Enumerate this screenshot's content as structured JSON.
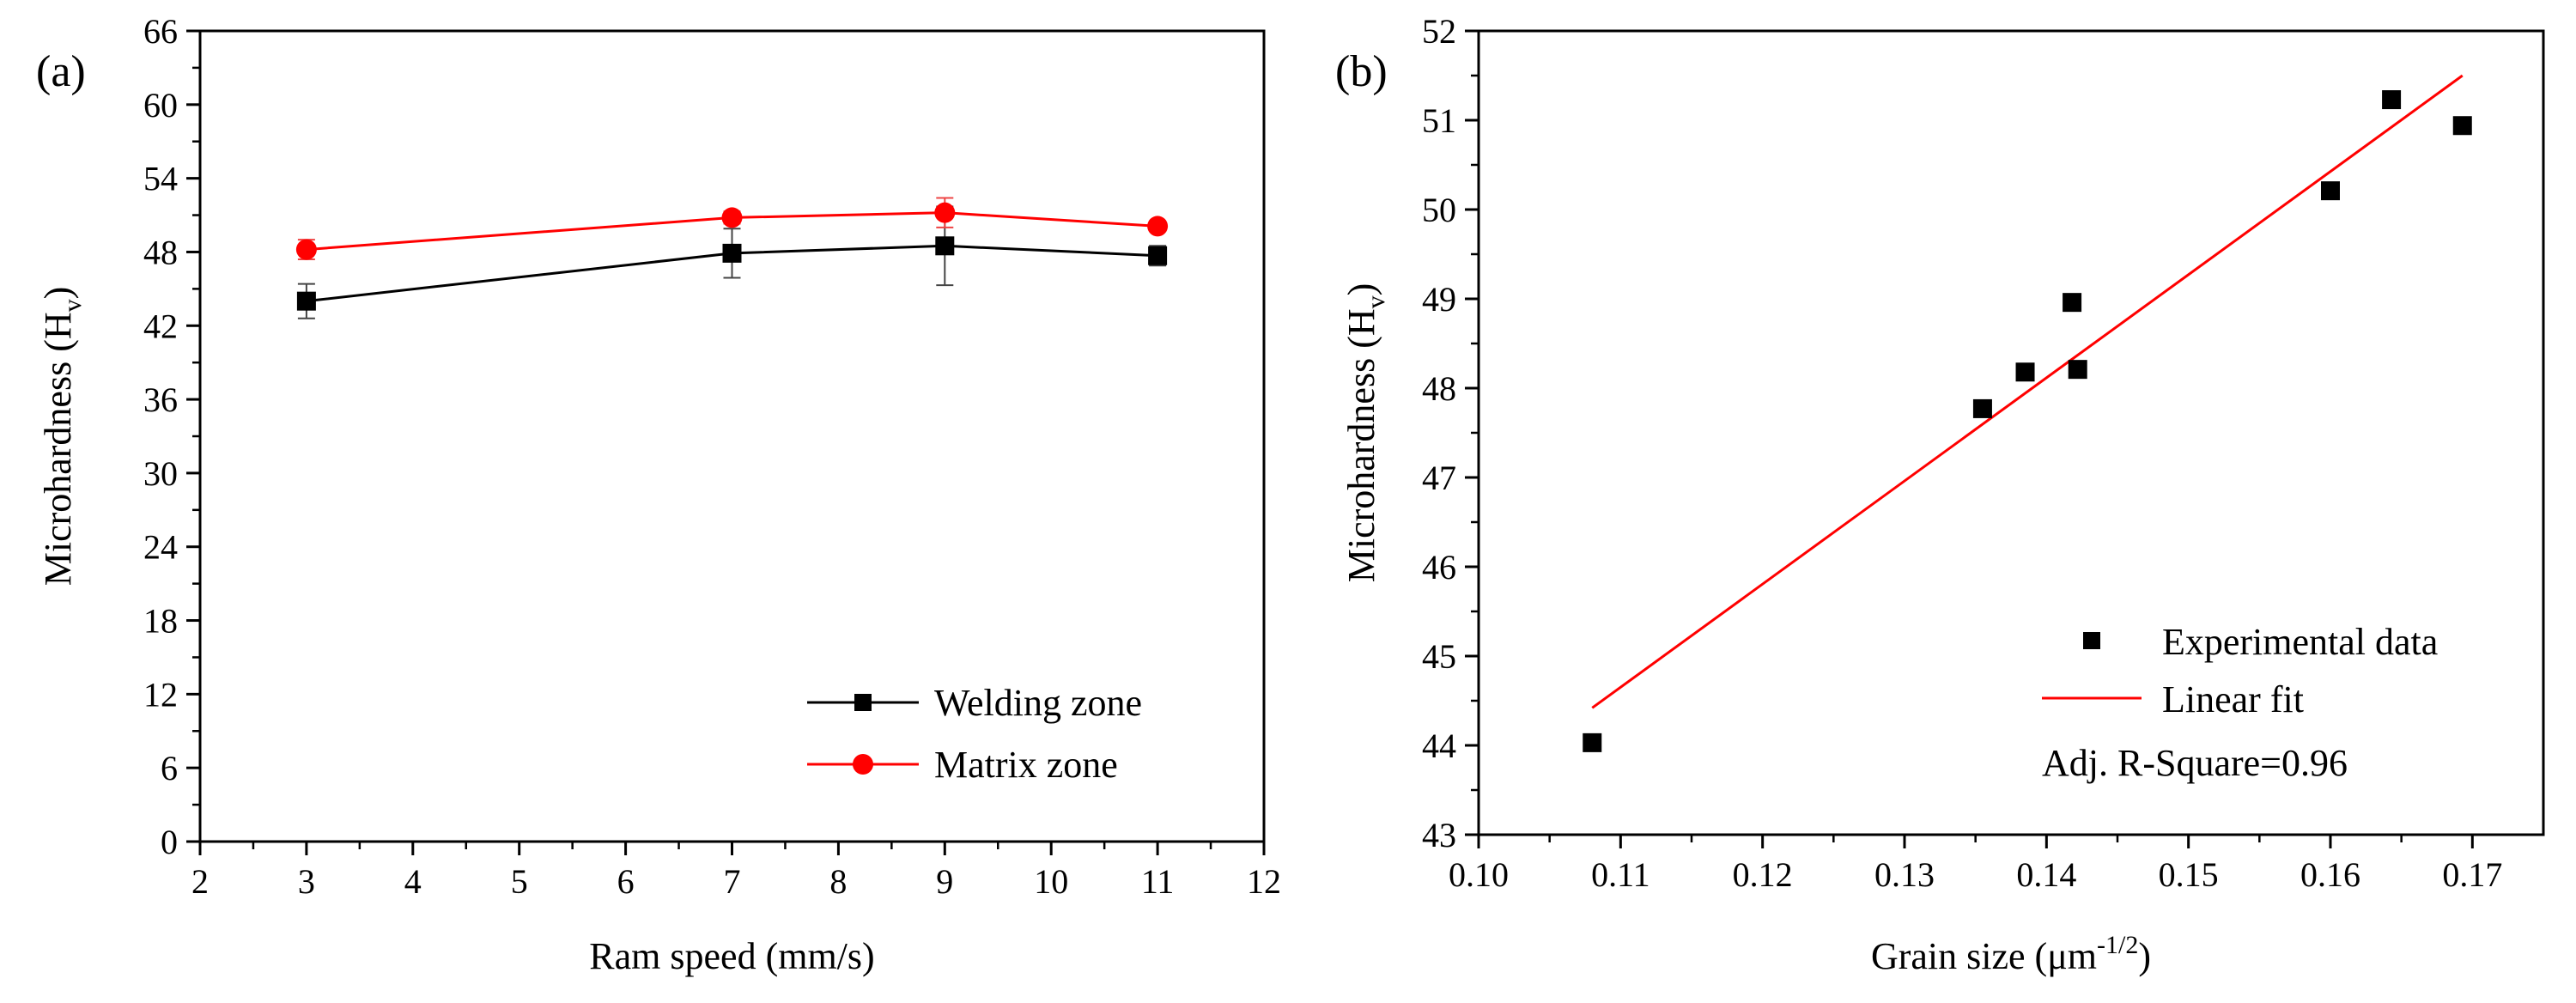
{
  "chart_data": [
    {
      "panel_label": "(a)",
      "type": "line",
      "xlabel": "Ram speed (mm/s)",
      "ylabel": {
        "main": "Microhardness (H",
        "sub": "v",
        "close": ")"
      },
      "xlim": [
        2,
        12
      ],
      "ylim": [
        0,
        66
      ],
      "xticks": [
        2,
        3,
        4,
        5,
        6,
        7,
        8,
        9,
        10,
        11,
        12
      ],
      "yticks": [
        0,
        6,
        12,
        18,
        24,
        30,
        36,
        42,
        48,
        54,
        60,
        66
      ],
      "grid": false,
      "legend_position": "bottom-right",
      "x": [
        3,
        7,
        9,
        11
      ],
      "series": [
        {
          "name": "Welding zone",
          "color": "#000000",
          "marker": "square",
          "values": [
            44.0,
            47.9,
            48.5,
            47.7
          ],
          "error": [
            1.4,
            2.0,
            3.2,
            0.8
          ]
        },
        {
          "name": "Matrix zone",
          "color": "#ff0000",
          "marker": "circle",
          "values": [
            48.2,
            50.8,
            51.2,
            50.1
          ],
          "error": [
            0.8,
            0.5,
            1.2,
            0.4
          ]
        }
      ]
    },
    {
      "panel_label": "(b)",
      "type": "scatter",
      "xlabel": {
        "main": "Grain size (μm",
        "sup": "-1/2",
        "close": ")"
      },
      "ylabel": {
        "main": "Microhardness (H",
        "sub": "v",
        "close": ")"
      },
      "xlim": [
        0.1,
        0.175
      ],
      "ylim": [
        43,
        52
      ],
      "xticks": [
        "0.10",
        "0.11",
        "0.12",
        "0.13",
        "0.14",
        "0.15",
        "0.16",
        "0.17"
      ],
      "yticks": [
        43,
        44,
        45,
        46,
        47,
        48,
        49,
        50,
        51,
        52
      ],
      "grid": false,
      "legend_position": "bottom-right",
      "series": [
        {
          "name": "Experimental data",
          "color": "#000000",
          "marker": "square",
          "x": [
            0.108,
            0.1355,
            0.1385,
            0.1418,
            0.1422,
            0.16,
            0.1643,
            0.1693
          ],
          "y": [
            44.03,
            47.77,
            48.18,
            48.96,
            48.21,
            50.21,
            51.23,
            50.94
          ]
        },
        {
          "name": "Linear fit",
          "color": "#ff0000",
          "line": true,
          "x": [
            0.108,
            0.1693
          ],
          "y": [
            44.42,
            51.5
          ]
        }
      ],
      "annotation": "Adj. R-Square=0.96"
    }
  ]
}
